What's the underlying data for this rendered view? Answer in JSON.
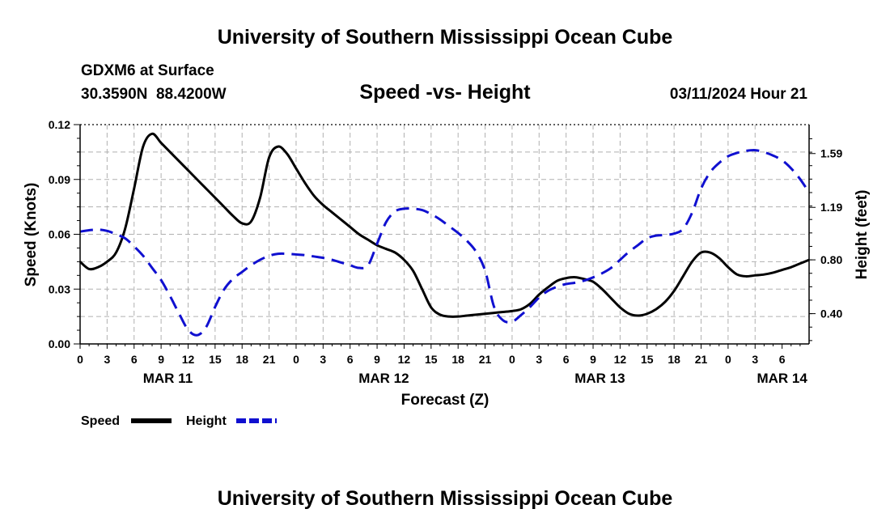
{
  "header": {
    "title": "University of Southern Mississippi Ocean Cube",
    "station": "GDXM6 at Surface",
    "location": "30.3590N  88.4200W",
    "datetime": "03/11/2024 Hour 21"
  },
  "footer": {
    "title": "University of Southern Mississippi Ocean Cube"
  },
  "colors": {
    "speed": "#000000",
    "height": "#1010d0",
    "grid": "#b0b0b0"
  },
  "chart_data": {
    "type": "line",
    "title": "Speed -vs- Height",
    "xlabel": "Forecast (Z)",
    "ylabel": "Speed (Knots)",
    "y2label": "Height (feet)",
    "xlim": [
      0,
      81
    ],
    "ylim": [
      0,
      0.12
    ],
    "y2lim": [
      0.175,
      1.805
    ],
    "y_ticks": [
      "0.00",
      "0.03",
      "0.06",
      "0.09",
      "0.12"
    ],
    "y2_ticks": [
      "0.40",
      "0.80",
      "1.19",
      "1.59"
    ],
    "x_tick_labels": [
      "0",
      "3",
      "6",
      "9",
      "12",
      "15",
      "18",
      "21",
      "0",
      "3",
      "6",
      "9",
      "12",
      "15",
      "18",
      "21",
      "0",
      "3",
      "6",
      "9",
      "12",
      "15",
      "18",
      "21",
      "0",
      "3",
      "6"
    ],
    "date_labels": [
      {
        "hour": 9.75,
        "label": "MAR 11"
      },
      {
        "hour": 33.75,
        "label": "MAR 12"
      },
      {
        "hour": 57.75,
        "label": "MAR 13"
      },
      {
        "hour": 78,
        "label": "MAR 14"
      }
    ],
    "legend": [
      {
        "name": "Speed",
        "style": "solid"
      },
      {
        "name": "Height",
        "style": "dashed"
      }
    ],
    "series": [
      {
        "name": "Speed",
        "axis": "left",
        "style": "solid",
        "x": [
          0,
          1,
          2,
          3,
          4,
          5,
          6,
          7,
          8,
          9,
          10,
          11,
          12,
          13,
          14,
          15,
          16,
          17,
          18,
          19,
          20,
          21,
          22,
          23,
          24,
          25,
          26,
          27,
          28,
          29,
          30,
          31,
          32,
          33,
          34,
          35,
          36,
          37,
          38,
          39,
          40,
          41,
          42,
          43,
          44,
          45,
          46,
          47,
          48,
          49,
          50,
          51,
          52,
          53,
          54,
          55,
          56,
          57,
          58,
          59,
          60,
          61,
          62,
          63,
          64,
          65,
          66,
          67,
          68,
          69,
          70,
          71,
          72,
          73,
          74,
          75,
          76,
          77,
          78,
          79,
          80,
          81
        ],
        "values": [
          0.045,
          0.041,
          0.042,
          0.045,
          0.05,
          0.063,
          0.085,
          0.108,
          0.115,
          0.11,
          0.105,
          0.1,
          0.095,
          0.09,
          0.085,
          0.08,
          0.075,
          0.07,
          0.066,
          0.067,
          0.08,
          0.102,
          0.108,
          0.104,
          0.096,
          0.088,
          0.081,
          0.076,
          0.072,
          0.068,
          0.064,
          0.06,
          0.057,
          0.054,
          0.052,
          0.05,
          0.046,
          0.04,
          0.03,
          0.02,
          0.016,
          0.015,
          0.015,
          0.0155,
          0.016,
          0.0165,
          0.017,
          0.0175,
          0.018,
          0.019,
          0.022,
          0.027,
          0.031,
          0.0345,
          0.036,
          0.0365,
          0.0355,
          0.034,
          0.03,
          0.025,
          0.02,
          0.0165,
          0.0155,
          0.0165,
          0.019,
          0.023,
          0.029,
          0.037,
          0.045,
          0.05,
          0.05,
          0.047,
          0.042,
          0.038,
          0.037,
          0.0375,
          0.038,
          0.039,
          0.0405,
          0.042,
          0.044,
          0.046
        ]
      },
      {
        "name": "Height",
        "axis": "right",
        "style": "dashed",
        "x": [
          0,
          1,
          2,
          3,
          4,
          5,
          6,
          7,
          8,
          9,
          10,
          11,
          12,
          13,
          14,
          15,
          16,
          17,
          18,
          19,
          20,
          21,
          22,
          23,
          24,
          25,
          26,
          27,
          28,
          29,
          30,
          31,
          32,
          33,
          34,
          35,
          36,
          37,
          38,
          39,
          40,
          41,
          42,
          43,
          44,
          45,
          46,
          47,
          48,
          49,
          50,
          51,
          52,
          53,
          54,
          55,
          56,
          57,
          58,
          59,
          60,
          61,
          62,
          63,
          64,
          65,
          66,
          67,
          68,
          69,
          70,
          71,
          72,
          73,
          74,
          75,
          76,
          77,
          78,
          79,
          80,
          81
        ],
        "values": [
          1.01,
          1.02,
          1.025,
          1.015,
          0.99,
          0.96,
          0.9,
          0.83,
          0.74,
          0.65,
          0.53,
          0.4,
          0.28,
          0.24,
          0.3,
          0.45,
          0.58,
          0.66,
          0.71,
          0.76,
          0.8,
          0.83,
          0.845,
          0.845,
          0.84,
          0.835,
          0.825,
          0.815,
          0.8,
          0.78,
          0.76,
          0.74,
          0.76,
          0.92,
          1.08,
          1.16,
          1.18,
          1.18,
          1.17,
          1.14,
          1.1,
          1.05,
          1.0,
          0.94,
          0.86,
          0.72,
          0.45,
          0.35,
          0.34,
          0.39,
          0.45,
          0.52,
          0.57,
          0.6,
          0.62,
          0.63,
          0.645,
          0.67,
          0.7,
          0.74,
          0.8,
          0.86,
          0.91,
          0.96,
          0.98,
          0.985,
          0.995,
          1.03,
          1.15,
          1.33,
          1.45,
          1.52,
          1.57,
          1.595,
          1.61,
          1.615,
          1.6,
          1.575,
          1.54,
          1.48,
          1.4,
          1.3
        ]
      }
    ]
  }
}
